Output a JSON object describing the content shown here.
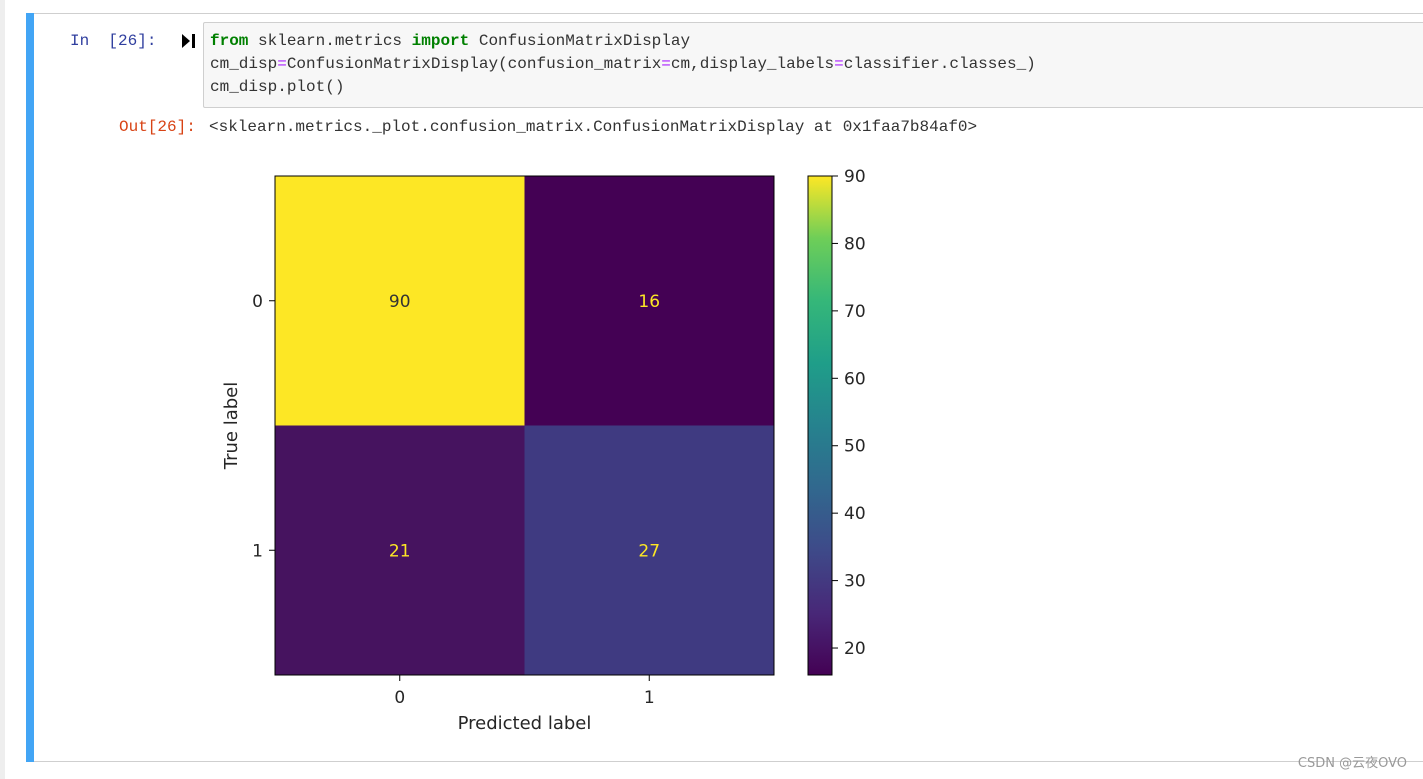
{
  "cell_input": {
    "prompt": "In  [26]:",
    "code_lines": [
      {
        "parts": [
          {
            "t": "from",
            "c": "kw"
          },
          {
            "t": " sklearn.metrics ",
            "c": ""
          },
          {
            "t": "import",
            "c": "kw"
          },
          {
            "t": " ConfusionMatrixDisplay",
            "c": ""
          }
        ]
      },
      {
        "parts": [
          {
            "t": "cm_disp",
            "c": ""
          },
          {
            "t": "=",
            "c": "op"
          },
          {
            "t": "ConfusionMatrixDisplay(confusion_matrix",
            "c": ""
          },
          {
            "t": "=",
            "c": "op"
          },
          {
            "t": "cm,display_labels",
            "c": ""
          },
          {
            "t": "=",
            "c": "op"
          },
          {
            "t": "classifier.classes_)",
            "c": ""
          }
        ]
      },
      {
        "parts": [
          {
            "t": "cm_disp.plot()",
            "c": ""
          }
        ]
      }
    ]
  },
  "cell_output": {
    "prompt": "Out[26]:",
    "repr_text": "<sklearn.metrics._plot.confusion_matrix.ConfusionMatrixDisplay at 0x1faa7b84af0>"
  },
  "chart_data": {
    "type": "heatmap",
    "title": "",
    "xlabel": "Predicted label",
    "ylabel": "True label",
    "x_categories": [
      "0",
      "1"
    ],
    "y_categories": [
      "0",
      "1"
    ],
    "matrix": [
      [
        90,
        16
      ],
      [
        21,
        27
      ]
    ],
    "colormap": "viridis",
    "colorbar": {
      "ticks": [
        20,
        30,
        40,
        50,
        60,
        70,
        80,
        90
      ],
      "range": [
        16,
        90
      ]
    },
    "cell_colors": {
      "90": "#fde725",
      "16": "#440154",
      "21": "#46135f",
      "27": "#3f3a81"
    },
    "text_color": "#fde725"
  },
  "colors": {
    "selected_bar": "#42a5f5",
    "in_prompt": "#303f9f",
    "out_prompt": "#d84315"
  },
  "watermark": "CSDN @云夜OVO"
}
